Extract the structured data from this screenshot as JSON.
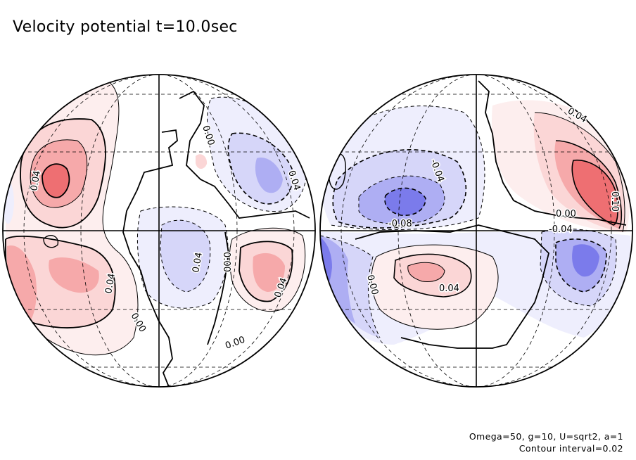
{
  "title": "Velocity potential t=10.0sec",
  "footer": {
    "params": "Omega=50, g=10, U=sqrt2, a=1",
    "contour_interval": "Contour interval=0.02"
  },
  "colors": {
    "positive_strong": "#ee6f72",
    "positive_mid": "#f6a9aa",
    "positive_weak": "#fbd6d6",
    "positive_faint": "#fdeeee",
    "negative_faint": "#eeeefd",
    "negative_weak": "#d6d6f9",
    "negative_mid": "#aeaef3",
    "negative_strong": "#7b7beb",
    "outline": "#000000"
  },
  "globes": [
    {
      "name": "left-hemisphere",
      "labels": [
        "0.04",
        "0.04",
        "0.00",
        "0.04",
        "0.04",
        "0.00",
        "0.04",
        "0.00",
        "0.00"
      ]
    },
    {
      "name": "right-hemisphere",
      "labels": [
        "0.04",
        "-0.04",
        "-0.08",
        "0.00",
        "-0.04",
        "0.10",
        "0.04",
        "0.00"
      ]
    }
  ]
}
